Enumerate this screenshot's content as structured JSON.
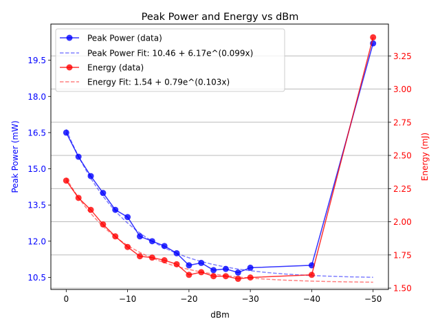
{
  "chart_data": {
    "type": "line",
    "title": "Peak Power and Energy vs dBm",
    "xlabel": "dBm",
    "ylabel_left": "Peak Power (mW)",
    "ylabel_right": "Energy (mJ)",
    "x": [
      0,
      -2,
      -4,
      -6,
      -8,
      -10,
      -12,
      -14,
      -16,
      -18,
      -20,
      -22,
      -24,
      -26,
      -28,
      -30,
      -40,
      -50
    ],
    "xlim": [
      2.5,
      -52.5
    ],
    "xticks": [
      0,
      -10,
      -20,
      -30,
      -40,
      -50
    ],
    "xtick_labels": [
      "0",
      "−10",
      "−20",
      "−30",
      "−40",
      "−50"
    ],
    "ylim_left": [
      10.0,
      21.0
    ],
    "yticks_left": [
      10.5,
      12.0,
      13.5,
      15.0,
      16.5,
      18.0,
      19.5
    ],
    "ytick_labels_left": [
      "10.5",
      "12.0",
      "13.5",
      "15.0",
      "16.5",
      "18.0",
      "19.5"
    ],
    "ylim_right": [
      1.49,
      3.49
    ],
    "yticks_right": [
      1.5,
      1.75,
      2.0,
      2.25,
      2.5,
      2.75,
      3.0,
      3.25
    ],
    "ytick_labels_right": [
      "1.50",
      "1.75",
      "2.00",
      "2.25",
      "2.50",
      "2.75",
      "3.00",
      "3.25"
    ],
    "grid": "right-axis horizontal",
    "legend_position": "top-left",
    "colors": {
      "left_axis": "#0000ff",
      "right_axis": "#ff0000",
      "peak_data": "#0000ff",
      "energy_data": "#ff0000"
    },
    "series": [
      {
        "name": "Peak Power (data)",
        "axis": "left",
        "style": "line-marker",
        "values": [
          16.5,
          15.5,
          14.7,
          14.0,
          13.3,
          13.0,
          12.2,
          12.0,
          11.8,
          11.5,
          11.0,
          11.1,
          10.8,
          10.85,
          10.7,
          10.9,
          11.0,
          20.2
        ]
      },
      {
        "name": "Peak Power Fit: 10.46 + 6.17e^(0.099x)",
        "axis": "left",
        "style": "dashed",
        "fit": {
          "a": 10.46,
          "b": 6.17,
          "c": 0.099
        }
      },
      {
        "name": "Energy (data)",
        "axis": "right",
        "style": "line-marker",
        "values": [
          2.31,
          2.18,
          2.09,
          1.98,
          1.89,
          1.81,
          1.74,
          1.73,
          1.71,
          1.68,
          1.6,
          1.62,
          1.59,
          1.59,
          1.57,
          1.58,
          1.6,
          3.39
        ]
      },
      {
        "name": "Energy Fit: 1.54 + 0.79e^(0.103x)",
        "axis": "right",
        "style": "dashed",
        "fit": {
          "a": 1.54,
          "b": 0.79,
          "c": 0.103
        }
      }
    ]
  }
}
